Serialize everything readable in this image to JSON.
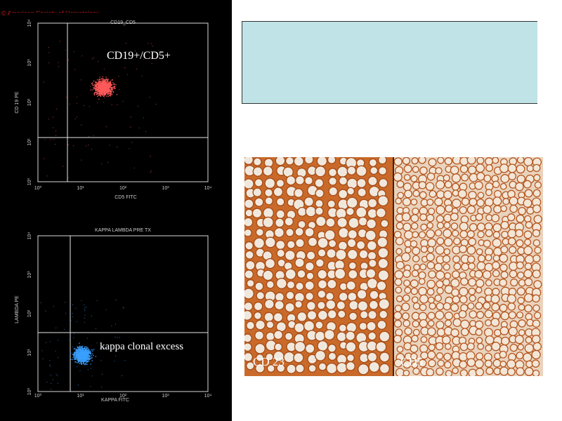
{
  "copyright": "© American Society of Hematology",
  "plots": [
    {
      "title": "CD19_CD5",
      "x_axis_label": "CD5 FITC",
      "y_axis_label": "CD 19 PE",
      "annotation": "CD19+/CD5+",
      "dot_color": "#ff5a5a",
      "tick_labels": [
        "10⁰",
        "10¹",
        "10²",
        "10³",
        "10⁴"
      ]
    },
    {
      "title": "KAPPA LAMBDA PRE TX",
      "x_axis_label": "KAPPA FITC",
      "y_axis_label": "LAMBDA PE",
      "annotation": "kappa clonal excess",
      "dot_color": "#3aa0ff",
      "tick_labels": [
        "10⁰",
        "10¹",
        "10²",
        "10³",
        "10⁴"
      ]
    }
  ],
  "histology": {
    "left_label": "CD 23",
    "right_label": "CD5",
    "stain_color": "#b5561f",
    "background_color": "#f1e8dd"
  }
}
